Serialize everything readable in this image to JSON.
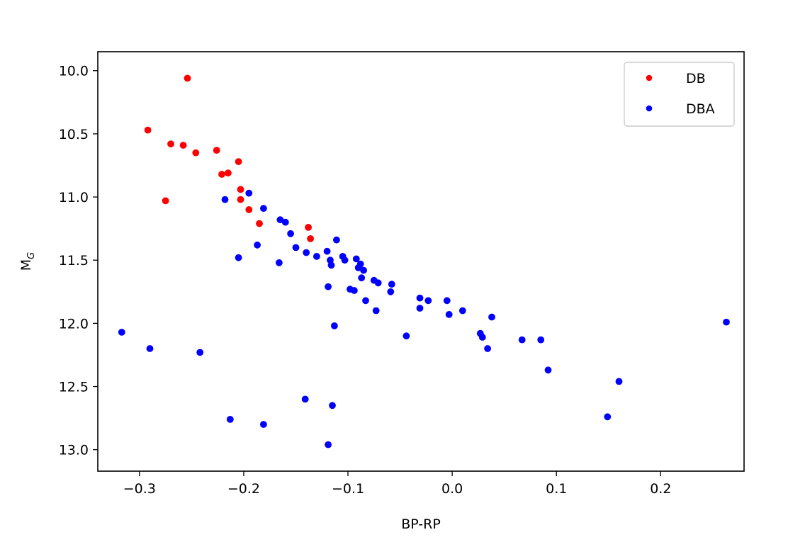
{
  "chart_data": {
    "type": "scatter",
    "title": "",
    "xlabel": "BP-RP",
    "ylabel": {
      "main": "M",
      "subscript": "G"
    },
    "xlim": [
      -0.34,
      0.28
    ],
    "ylim": [
      13.17,
      9.85
    ],
    "y_inverted": true,
    "grid": false,
    "legend_position": "top-right",
    "x_ticks": [
      -0.3,
      -0.2,
      -0.1,
      0.0,
      0.1,
      0.2
    ],
    "x_tick_labels": [
      "−0.3",
      "−0.2",
      "−0.1",
      "0.0",
      "0.1",
      "0.2"
    ],
    "y_ticks": [
      10.0,
      10.5,
      11.0,
      11.5,
      12.0,
      12.5,
      13.0
    ],
    "y_tick_labels": [
      "10.0",
      "10.5",
      "11.0",
      "11.5",
      "12.0",
      "12.5",
      "13.0"
    ],
    "series": [
      {
        "name": "DB",
        "color": "#ff0000",
        "points": [
          [
            -0.254,
            10.06
          ],
          [
            -0.292,
            10.47
          ],
          [
            -0.27,
            10.58
          ],
          [
            -0.258,
            10.59
          ],
          [
            -0.246,
            10.65
          ],
          [
            -0.226,
            10.63
          ],
          [
            -0.205,
            10.72
          ],
          [
            -0.221,
            10.82
          ],
          [
            -0.215,
            10.81
          ],
          [
            -0.203,
            10.94
          ],
          [
            -0.275,
            11.03
          ],
          [
            -0.203,
            11.02
          ],
          [
            -0.195,
            11.1
          ],
          [
            -0.185,
            11.21
          ],
          [
            -0.138,
            11.24
          ],
          [
            -0.136,
            11.33
          ]
        ]
      },
      {
        "name": "DBA",
        "color": "#0000ff",
        "points": [
          [
            -0.218,
            11.02
          ],
          [
            -0.195,
            10.97
          ],
          [
            -0.181,
            11.09
          ],
          [
            -0.165,
            11.18
          ],
          [
            -0.16,
            11.2
          ],
          [
            -0.155,
            11.29
          ],
          [
            -0.15,
            11.4
          ],
          [
            -0.14,
            11.44
          ],
          [
            -0.13,
            11.47
          ],
          [
            -0.12,
            11.43
          ],
          [
            -0.111,
            11.34
          ],
          [
            -0.117,
            11.5
          ],
          [
            -0.116,
            11.54
          ],
          [
            -0.105,
            11.47
          ],
          [
            -0.103,
            11.5
          ],
          [
            -0.092,
            11.49
          ],
          [
            -0.09,
            11.56
          ],
          [
            -0.088,
            11.53
          ],
          [
            -0.085,
            11.58
          ],
          [
            -0.087,
            11.64
          ],
          [
            -0.098,
            11.73
          ],
          [
            -0.094,
            11.74
          ],
          [
            -0.119,
            11.71
          ],
          [
            -0.083,
            11.82
          ],
          [
            -0.075,
            11.66
          ],
          [
            -0.071,
            11.68
          ],
          [
            -0.058,
            11.69
          ],
          [
            -0.059,
            11.75
          ],
          [
            -0.073,
            11.9
          ],
          [
            -0.031,
            11.8
          ],
          [
            -0.023,
            11.82
          ],
          [
            -0.005,
            11.82
          ],
          [
            -0.031,
            11.88
          ],
          [
            -0.003,
            11.93
          ],
          [
            0.01,
            11.9
          ],
          [
            0.038,
            11.95
          ],
          [
            -0.113,
            12.02
          ],
          [
            -0.044,
            12.1
          ],
          [
            0.027,
            12.08
          ],
          [
            0.029,
            12.11
          ],
          [
            0.034,
            12.2
          ],
          [
            0.067,
            12.13
          ],
          [
            0.085,
            12.13
          ],
          [
            0.092,
            12.37
          ],
          [
            0.16,
            12.46
          ],
          [
            0.149,
            12.74
          ],
          [
            0.263,
            11.99
          ],
          [
            -0.205,
            11.48
          ],
          [
            -0.187,
            11.38
          ],
          [
            -0.166,
            11.52
          ],
          [
            -0.317,
            12.07
          ],
          [
            -0.29,
            12.2
          ],
          [
            -0.242,
            12.23
          ],
          [
            -0.141,
            12.6
          ],
          [
            -0.115,
            12.65
          ],
          [
            -0.213,
            12.76
          ],
          [
            -0.181,
            12.8
          ],
          [
            -0.119,
            12.96
          ]
        ]
      }
    ]
  }
}
